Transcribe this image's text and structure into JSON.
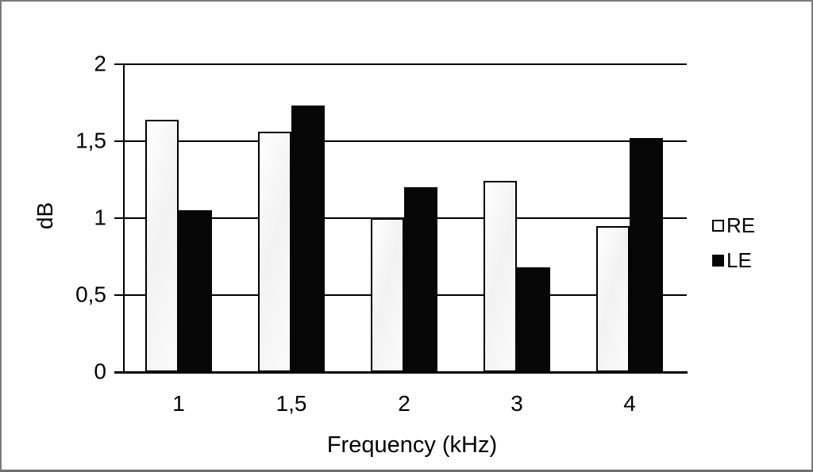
{
  "chart_data": {
    "type": "bar",
    "title": "",
    "categories": [
      "1",
      "1,5",
      "2",
      "3",
      "4"
    ],
    "series": [
      {
        "name": "RE",
        "style": "white",
        "values": [
          1.64,
          1.56,
          1.0,
          1.24,
          0.95
        ]
      },
      {
        "name": "LE",
        "style": "black",
        "values": [
          1.05,
          1.73,
          1.2,
          0.68,
          1.52
        ]
      }
    ],
    "xlabel": "Frequency (kHz)",
    "ylabel": "dB",
    "ylim": [
      0,
      2
    ],
    "yticks": [
      {
        "value": 0,
        "label": "0"
      },
      {
        "value": 0.5,
        "label": "0,5"
      },
      {
        "value": 1,
        "label": "1"
      },
      {
        "value": 1.5,
        "label": "1,5"
      },
      {
        "value": 2,
        "label": "2"
      }
    ],
    "grid": true,
    "legend_position": "right"
  },
  "legend": {
    "items": [
      {
        "label": "RE",
        "swatch": "white-square-icon"
      },
      {
        "label": "LE",
        "swatch": "black-square-icon"
      }
    ]
  },
  "colors": {
    "background": "#ffffff",
    "frame_border": "#7b7b7b",
    "axis": "#000000",
    "bar_re_fill": "#fcfcfc",
    "bar_re_border": "#000000",
    "bar_le_fill": "#070707"
  }
}
